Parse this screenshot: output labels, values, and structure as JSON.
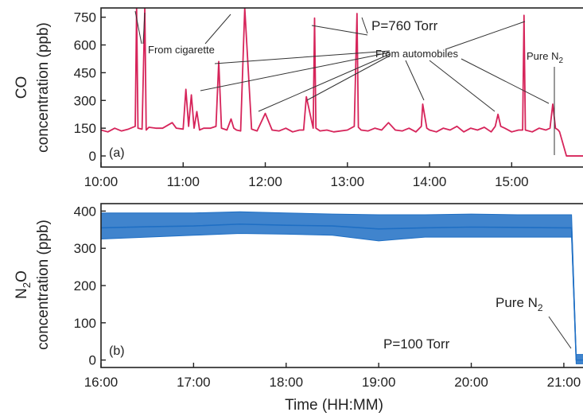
{
  "chart_data": [
    {
      "type": "line",
      "panel_label": "(a)",
      "ylabel_line1": "CO",
      "ylabel_line2": "concentration (ppb)",
      "xlabel": "",
      "xlim": [
        "10:00",
        "15:55"
      ],
      "ylim": [
        -60,
        800
      ],
      "x_ticks": [
        "10:00",
        "11:00",
        "12:00",
        "13:00",
        "14:00",
        "15:00"
      ],
      "y_ticks": [
        0,
        150,
        300,
        450,
        600,
        750
      ],
      "color": "#d6245a",
      "grid": false,
      "annotations": {
        "pressure": "P=760 Torr",
        "cigarette": "From cigarette",
        "automobiles": "From automobiles",
        "pure_prefix": "Pure N",
        "pure_sub": "2"
      },
      "series": [
        {
          "x": [
            "10:00",
            "10:05",
            "10:10",
            "10:15",
            "10:20",
            "10:25",
            "10:26",
            "10:27",
            "10:30",
            "10:32",
            "10:33",
            "10:35",
            "10:40",
            "10:45",
            "10:52",
            "10:55",
            "11:00",
            "11:02",
            "11:04",
            "11:06",
            "11:08",
            "11:10",
            "11:12",
            "11:15",
            "11:20",
            "11:24",
            "11:26",
            "11:28",
            "11:32",
            "11:35",
            "11:37",
            "11:39",
            "11:42",
            "11:45",
            "11:50",
            "11:52",
            "11:54",
            "12:00",
            "12:05",
            "12:10",
            "12:15",
            "12:20",
            "12:25",
            "12:28",
            "12:30",
            "12:35",
            "12:36",
            "12:37",
            "12:40",
            "12:45",
            "12:50",
            "13:00",
            "13:05",
            "13:07",
            "13:08",
            "13:10",
            "13:15",
            "13:20",
            "13:25",
            "13:30",
            "13:35",
            "13:40",
            "13:45",
            "13:50",
            "13:54",
            "13:55",
            "13:58",
            "14:00",
            "14:05",
            "14:10",
            "14:15",
            "14:20",
            "14:25",
            "14:30",
            "14:35",
            "14:40",
            "14:45",
            "14:48",
            "14:50",
            "14:52",
            "14:55",
            "15:00",
            "15:05",
            "15:08",
            "15:09",
            "15:10",
            "15:15",
            "15:20",
            "15:25",
            "15:28",
            "15:30",
            "15:32",
            "15:34",
            "15:35",
            "15:40",
            "15:45",
            "15:55"
          ],
          "y": [
            140,
            130,
            150,
            135,
            145,
            160,
            800,
            150,
            145,
            800,
            140,
            155,
            150,
            150,
            180,
            150,
            145,
            360,
            160,
            330,
            150,
            240,
            140,
            150,
            150,
            160,
            510,
            150,
            140,
            200,
            150,
            140,
            135,
            800,
            145,
            140,
            135,
            230,
            140,
            135,
            150,
            130,
            140,
            140,
            320,
            150,
            745,
            150,
            135,
            140,
            130,
            140,
            160,
            770,
            155,
            140,
            135,
            150,
            140,
            180,
            140,
            135,
            150,
            130,
            160,
            280,
            150,
            140,
            130,
            150,
            140,
            160,
            130,
            150,
            140,
            155,
            130,
            160,
            225,
            160,
            150,
            130,
            140,
            140,
            760,
            140,
            130,
            150,
            140,
            150,
            280,
            150,
            140,
            130,
            0,
            0,
            0
          ]
        }
      ]
    },
    {
      "type": "line",
      "panel_label": "(b)",
      "ylabel_line1": "N",
      "ylabel_sub": "2",
      "ylabel_line1_suffix": "O",
      "ylabel_line2": "concentration (ppb)",
      "xlabel": "Time (HH:MM)",
      "xlim": [
        "16:00",
        "21:15"
      ],
      "ylim": [
        -20,
        420
      ],
      "x_ticks": [
        "16:00",
        "17:00",
        "18:00",
        "19:00",
        "20:00",
        "21:00"
      ],
      "y_ticks": [
        0,
        100,
        200,
        300,
        400
      ],
      "color": "#1f6fc4",
      "grid": false,
      "annotations": {
        "pressure": "P=100 Torr",
        "pure_prefix": "Pure N",
        "pure_sub": "2"
      },
      "series": [
        {
          "x": [
            "16:00",
            "16:30",
            "17:00",
            "17:30",
            "18:00",
            "18:30",
            "19:00",
            "19:30",
            "20:00",
            "20:30",
            "21:00",
            "21:05",
            "21:08",
            "21:10",
            "21:15"
          ],
          "y": [
            355,
            358,
            360,
            365,
            362,
            360,
            352,
            355,
            357,
            356,
            355,
            355,
            0,
            0,
            0
          ],
          "band": [
            [
              325,
              395
            ],
            [
              330,
              395
            ],
            [
              335,
              395
            ],
            [
              340,
              398
            ],
            [
              338,
              395
            ],
            [
              335,
              392
            ],
            [
              320,
              390
            ],
            [
              330,
              390
            ],
            [
              330,
              392
            ],
            [
              330,
              390
            ],
            [
              330,
              390
            ],
            [
              330,
              390
            ],
            [
              -10,
              15
            ],
            [
              -10,
              15
            ],
            [
              -10,
              15
            ]
          ]
        }
      ]
    }
  ]
}
